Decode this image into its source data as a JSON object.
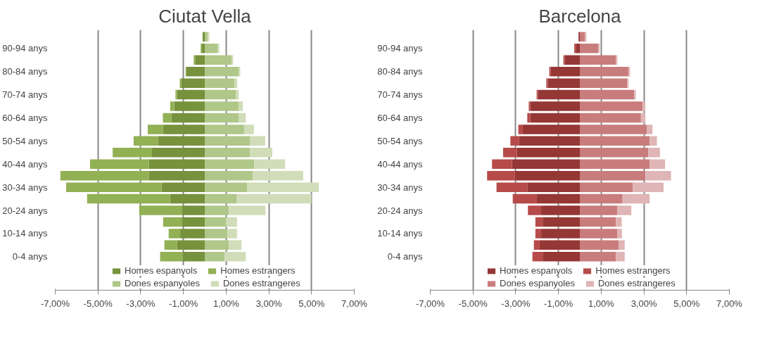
{
  "chart_data": [
    {
      "type": "bar",
      "orientation": "horizontal",
      "stacked": true,
      "title": "Ciutat Vella",
      "grid": "x",
      "legend": "bottom",
      "categories": [
        null,
        "90-94 anys",
        null,
        "80-84 anys",
        null,
        "70-74 anys",
        null,
        "60-64 anys",
        null,
        "50-54 anys",
        null,
        "40-44 anys",
        null,
        "30-34 anys",
        null,
        "20-24 anys",
        null,
        "10-14 anys",
        null,
        "0-4 anys"
      ],
      "xlim": [
        -7,
        7
      ],
      "xticks": [
        {
          "value": -7,
          "label": "-7,00%"
        },
        {
          "value": -5,
          "label": "-5,00%"
        },
        {
          "value": -3,
          "label": "-3,00%"
        },
        {
          "value": -1,
          "label": "-1,00%"
        },
        {
          "value": 1,
          "label": "1,00%"
        },
        {
          "value": 3,
          "label": "3,00%"
        },
        {
          "value": 5,
          "label": "5,00%"
        },
        {
          "value": 7,
          "label": "7,00%"
        }
      ],
      "series": [
        {
          "name": "Homes espanyols",
          "color": "#76923c",
          "values": [
            -0.1,
            -0.13,
            -0.45,
            -0.87,
            -1.11,
            -1.3,
            -1.43,
            -1.56,
            -1.95,
            -2.19,
            -2.47,
            -2.61,
            -2.61,
            -2.02,
            -1.63,
            -1.08,
            -1.08,
            -1.15,
            -1.29,
            -1.04
          ]
        },
        {
          "name": "Homes estrangers",
          "color": "#92b054",
          "values": [
            0,
            -0.06,
            -0.07,
            -0.03,
            -0.06,
            -0.07,
            -0.19,
            -0.4,
            -0.72,
            -1.14,
            -1.84,
            -2.76,
            -4.15,
            -4.47,
            -3.88,
            -1.99,
            -0.87,
            -0.54,
            -0.6,
            -1.05
          ]
        },
        {
          "name": "Dones espanyoles",
          "color": "#afc788",
          "values": [
            0.14,
            0.6,
            1.27,
            1.58,
            1.38,
            1.45,
            1.58,
            1.58,
            1.84,
            2.11,
            2.11,
            2.32,
            2.25,
            1.98,
            1.5,
            1.13,
            0.99,
            1.06,
            1.13,
            0.93
          ]
        },
        {
          "name": "Dones estrangeres",
          "color": "#d0ddb8",
          "values": [
            0.07,
            0.08,
            0.06,
            0.08,
            0.14,
            0.14,
            0.2,
            0.34,
            0.46,
            0.72,
            1.05,
            1.44,
            2.36,
            3.36,
            3.49,
            1.71,
            0.52,
            0.45,
            0.59,
            0.99
          ]
        }
      ]
    },
    {
      "type": "bar",
      "orientation": "horizontal",
      "stacked": true,
      "title": "Barcelona",
      "grid": "x",
      "legend": "bottom",
      "categories": [
        null,
        "90-94 anys",
        null,
        "80-84 anys",
        null,
        "70-74 anys",
        null,
        "60-64 anys",
        null,
        "50-54 anys",
        null,
        "40-44 anys",
        null,
        "30-34 anys",
        null,
        "20-24 anys",
        null,
        "10-14 anys",
        null,
        "0-4 anys"
      ],
      "xlim": [
        -7,
        7
      ],
      "xticks": [
        {
          "value": -7,
          "label": "-7,00%"
        },
        {
          "value": -5,
          "label": "-5,00%"
        },
        {
          "value": -3,
          "label": "-3,00%"
        },
        {
          "value": -1,
          "label": "-1,00%"
        },
        {
          "value": 1,
          "label": "1,00%"
        },
        {
          "value": 3,
          "label": "3,00%"
        },
        {
          "value": 5,
          "label": "5,00%"
        },
        {
          "value": 7,
          "label": "7,00%"
        }
      ],
      "series": [
        {
          "name": "Homes espanyols",
          "color": "#953735",
          "values": [
            -0.06,
            -0.19,
            -0.71,
            -1.37,
            -1.5,
            -1.96,
            -2.32,
            -2.32,
            -2.67,
            -2.84,
            -2.94,
            -3.18,
            -3.04,
            -2.46,
            -2.01,
            -1.81,
            -1.74,
            -1.81,
            -1.88,
            -1.74
          ]
        },
        {
          "name": "Homes estrangers",
          "color": "#b64b49",
          "values": [
            0,
            -0.07,
            -0.06,
            -0.06,
            -0.07,
            -0.06,
            -0.07,
            -0.14,
            -0.21,
            -0.41,
            -0.65,
            -0.93,
            -1.3,
            -1.44,
            -1.13,
            -0.62,
            -0.34,
            -0.27,
            -0.27,
            -0.48
          ]
        },
        {
          "name": "Dones espanyoles",
          "color": "#c97c7c",
          "values": [
            0.24,
            0.87,
            1.69,
            2.28,
            2.21,
            2.55,
            2.93,
            2.86,
            3.13,
            3.27,
            3.2,
            3.27,
            3.07,
            2.48,
            2.0,
            1.76,
            1.69,
            1.76,
            1.83,
            1.69
          ]
        },
        {
          "name": "Dones estrangeres",
          "color": "#e0b5b5",
          "values": [
            0.07,
            0.06,
            0.07,
            0.07,
            0.07,
            0.07,
            0.14,
            0.21,
            0.27,
            0.34,
            0.55,
            0.72,
            1.2,
            1.44,
            1.27,
            0.65,
            0.27,
            0.21,
            0.27,
            0.41
          ]
        }
      ]
    }
  ]
}
